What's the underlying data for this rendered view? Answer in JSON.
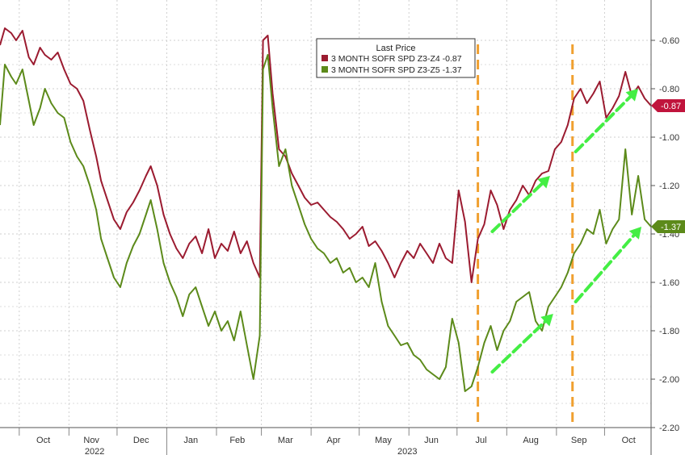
{
  "chart_data": {
    "type": "line",
    "title": "",
    "xlabel": "",
    "ylabel": "",
    "ylim": [
      -2.2,
      -0.5
    ],
    "y_ticks": [
      -0.6,
      -0.8,
      -1.0,
      -1.2,
      -1.4,
      -1.6,
      -1.8,
      -2.0,
      -2.2
    ],
    "y_tick_labels": [
      "-0.60",
      "-0.80",
      "-1.00",
      "-1.20",
      "-1.40",
      "-1.60",
      "-1.80",
      "-2.00",
      "-2.20"
    ],
    "x_range": [
      "2022-09-19",
      "2023-10-30"
    ],
    "month_labels": [
      {
        "label": "Oct",
        "date": "2022-10-16"
      },
      {
        "label": "Nov",
        "date": "2022-11-15"
      },
      {
        "label": "Dec",
        "date": "2022-12-16"
      },
      {
        "label": "Jan",
        "date": "2023-01-16"
      },
      {
        "label": "Feb",
        "date": "2023-02-14"
      },
      {
        "label": "Mar",
        "date": "2023-03-16"
      },
      {
        "label": "Apr",
        "date": "2023-04-15"
      },
      {
        "label": "May",
        "date": "2023-05-16"
      },
      {
        "label": "Jun",
        "date": "2023-06-15"
      },
      {
        "label": "Jul",
        "date": "2023-07-16"
      },
      {
        "label": "Aug",
        "date": "2023-08-16"
      },
      {
        "label": "Sep",
        "date": "2023-09-15"
      },
      {
        "label": "Oct",
        "date": "2023-10-16"
      }
    ],
    "year_labels": [
      {
        "label": "2022",
        "date": "2022-11-17"
      },
      {
        "label": "2023",
        "date": "2023-05-31"
      }
    ],
    "legend": {
      "title": "Last Price",
      "placement": "top-center",
      "entries": [
        {
          "label": "3 MONTH SOFR SPD Z3-Z4 -0.87",
          "color": "#9b1b30"
        },
        {
          "label": "3 MONTH SOFR SPD Z3-Z5 -1.37",
          "color": "#5c8a1a"
        }
      ]
    },
    "last_value_tags": [
      {
        "text": "-0.87",
        "value": -0.87,
        "color": "#c0143c"
      },
      {
        "text": "-1.37",
        "value": -1.37,
        "color": "#5c8a1a"
      }
    ],
    "vertical_markers": [
      {
        "date": "2023-07-14",
        "color": "#f0a030"
      },
      {
        "date": "2023-09-11",
        "color": "#f0a030"
      }
    ],
    "trend_arrows": [
      {
        "from": [
          "2023-07-23",
          -1.39
        ],
        "to": [
          "2023-08-28",
          -1.16
        ],
        "color": "#44ee44"
      },
      {
        "from": [
          "2023-09-13",
          -1.06
        ],
        "to": [
          "2023-10-22",
          -0.8
        ],
        "color": "#44ee44"
      },
      {
        "from": [
          "2023-07-23",
          -1.97
        ],
        "to": [
          "2023-08-30",
          -1.73
        ],
        "color": "#44ee44"
      },
      {
        "from": [
          "2023-09-13",
          -1.68
        ],
        "to": [
          "2023-10-24",
          -1.37
        ],
        "color": "#44ee44"
      }
    ],
    "series": [
      {
        "name": "3 MONTH SOFR SPD Z3-Z4",
        "color": "#9b1b30",
        "x": [
          "2022-09-19",
          "2022-09-22",
          "2022-09-26",
          "2022-09-29",
          "2022-10-03",
          "2022-10-07",
          "2022-10-10",
          "2022-10-14",
          "2022-10-17",
          "2022-10-21",
          "2022-10-25",
          "2022-10-29",
          "2022-11-02",
          "2022-11-06",
          "2022-11-10",
          "2022-11-14",
          "2022-11-18",
          "2022-11-21",
          "2022-11-25",
          "2022-11-29",
          "2022-12-03",
          "2022-12-07",
          "2022-12-11",
          "2022-12-15",
          "2022-12-19",
          "2022-12-22",
          "2022-12-26",
          "2022-12-30",
          "2023-01-03",
          "2023-01-07",
          "2023-01-11",
          "2023-01-15",
          "2023-01-19",
          "2023-01-23",
          "2023-01-27",
          "2023-01-31",
          "2023-02-04",
          "2023-02-08",
          "2023-02-12",
          "2023-02-16",
          "2023-02-20",
          "2023-02-24",
          "2023-02-28",
          "2023-03-02",
          "2023-03-05",
          "2023-03-08",
          "2023-03-12",
          "2023-03-16",
          "2023-03-20",
          "2023-03-24",
          "2023-03-28",
          "2023-04-01",
          "2023-04-05",
          "2023-04-09",
          "2023-04-13",
          "2023-04-17",
          "2023-04-21",
          "2023-04-25",
          "2023-04-29",
          "2023-05-03",
          "2023-05-07",
          "2023-05-11",
          "2023-05-15",
          "2023-05-19",
          "2023-05-23",
          "2023-05-27",
          "2023-05-31",
          "2023-06-04",
          "2023-06-08",
          "2023-06-12",
          "2023-06-16",
          "2023-06-20",
          "2023-06-24",
          "2023-06-28",
          "2023-07-02",
          "2023-07-06",
          "2023-07-10",
          "2023-07-14",
          "2023-07-18",
          "2023-07-22",
          "2023-07-26",
          "2023-07-30",
          "2023-08-03",
          "2023-08-07",
          "2023-08-11",
          "2023-08-15",
          "2023-08-19",
          "2023-08-23",
          "2023-08-27",
          "2023-08-31",
          "2023-09-04",
          "2023-09-08",
          "2023-09-12",
          "2023-09-16",
          "2023-09-20",
          "2023-09-24",
          "2023-09-28",
          "2023-10-02",
          "2023-10-06",
          "2023-10-10",
          "2023-10-14",
          "2023-10-18",
          "2023-10-22",
          "2023-10-26",
          "2023-10-30"
        ],
        "values": [
          -0.62,
          -0.55,
          -0.57,
          -0.6,
          -0.56,
          -0.67,
          -0.7,
          -0.63,
          -0.66,
          -0.68,
          -0.65,
          -0.72,
          -0.78,
          -0.8,
          -0.85,
          -0.97,
          -1.08,
          -1.18,
          -1.26,
          -1.34,
          -1.38,
          -1.31,
          -1.27,
          -1.22,
          -1.16,
          -1.12,
          -1.2,
          -1.32,
          -1.4,
          -1.46,
          -1.5,
          -1.44,
          -1.41,
          -1.48,
          -1.38,
          -1.5,
          -1.44,
          -1.47,
          -1.39,
          -1.48,
          -1.43,
          -1.52,
          -1.58,
          -0.6,
          -0.58,
          -0.82,
          -1.05,
          -1.08,
          -1.15,
          -1.2,
          -1.25,
          -1.28,
          -1.27,
          -1.3,
          -1.33,
          -1.35,
          -1.38,
          -1.42,
          -1.4,
          -1.37,
          -1.45,
          -1.43,
          -1.47,
          -1.52,
          -1.58,
          -1.52,
          -1.47,
          -1.5,
          -1.44,
          -1.48,
          -1.52,
          -1.44,
          -1.5,
          -1.52,
          -1.22,
          -1.35,
          -1.6,
          -1.42,
          -1.36,
          -1.22,
          -1.28,
          -1.38,
          -1.3,
          -1.26,
          -1.2,
          -1.24,
          -1.18,
          -1.15,
          -1.14,
          -1.05,
          -1.02,
          -0.95,
          -0.84,
          -0.8,
          -0.86,
          -0.82,
          -0.77,
          -0.92,
          -0.88,
          -0.83,
          -0.73,
          -0.83,
          -0.79,
          -0.84,
          -0.87
        ]
      },
      {
        "name": "3 MONTH SOFR SPD Z3-Z5",
        "color": "#5c8a1a",
        "x": [
          "2022-09-19",
          "2022-09-22",
          "2022-09-26",
          "2022-09-29",
          "2022-10-03",
          "2022-10-07",
          "2022-10-10",
          "2022-10-14",
          "2022-10-17",
          "2022-10-21",
          "2022-10-25",
          "2022-10-29",
          "2022-11-02",
          "2022-11-06",
          "2022-11-10",
          "2022-11-14",
          "2022-11-18",
          "2022-11-21",
          "2022-11-25",
          "2022-11-29",
          "2022-12-03",
          "2022-12-07",
          "2022-12-11",
          "2022-12-15",
          "2022-12-19",
          "2022-12-22",
          "2022-12-26",
          "2022-12-30",
          "2023-01-03",
          "2023-01-07",
          "2023-01-11",
          "2023-01-15",
          "2023-01-19",
          "2023-01-23",
          "2023-01-27",
          "2023-01-31",
          "2023-02-04",
          "2023-02-08",
          "2023-02-12",
          "2023-02-16",
          "2023-02-20",
          "2023-02-24",
          "2023-02-28",
          "2023-03-02",
          "2023-03-05",
          "2023-03-08",
          "2023-03-12",
          "2023-03-16",
          "2023-03-20",
          "2023-03-24",
          "2023-03-28",
          "2023-04-01",
          "2023-04-05",
          "2023-04-09",
          "2023-04-13",
          "2023-04-17",
          "2023-04-21",
          "2023-04-25",
          "2023-04-29",
          "2023-05-03",
          "2023-05-07",
          "2023-05-11",
          "2023-05-15",
          "2023-05-19",
          "2023-05-23",
          "2023-05-27",
          "2023-05-31",
          "2023-06-04",
          "2023-06-08",
          "2023-06-12",
          "2023-06-16",
          "2023-06-20",
          "2023-06-24",
          "2023-06-28",
          "2023-07-02",
          "2023-07-06",
          "2023-07-10",
          "2023-07-14",
          "2023-07-18",
          "2023-07-22",
          "2023-07-26",
          "2023-07-30",
          "2023-08-03",
          "2023-08-07",
          "2023-08-11",
          "2023-08-15",
          "2023-08-19",
          "2023-08-23",
          "2023-08-27",
          "2023-08-31",
          "2023-09-04",
          "2023-09-08",
          "2023-09-12",
          "2023-09-16",
          "2023-09-20",
          "2023-09-24",
          "2023-09-28",
          "2023-10-02",
          "2023-10-06",
          "2023-10-10",
          "2023-10-14",
          "2023-10-18",
          "2023-10-22",
          "2023-10-26",
          "2023-10-30"
        ],
        "values": [
          -0.95,
          -0.7,
          -0.75,
          -0.78,
          -0.72,
          -0.85,
          -0.95,
          -0.88,
          -0.8,
          -0.86,
          -0.9,
          -0.92,
          -1.02,
          -1.08,
          -1.12,
          -1.2,
          -1.3,
          -1.42,
          -1.5,
          -1.58,
          -1.62,
          -1.52,
          -1.45,
          -1.4,
          -1.32,
          -1.26,
          -1.38,
          -1.52,
          -1.6,
          -1.66,
          -1.74,
          -1.65,
          -1.62,
          -1.7,
          -1.78,
          -1.72,
          -1.8,
          -1.76,
          -1.84,
          -1.72,
          -1.86,
          -2.0,
          -1.82,
          -0.72,
          -0.66,
          -0.88,
          -1.12,
          -1.05,
          -1.2,
          -1.28,
          -1.36,
          -1.42,
          -1.46,
          -1.48,
          -1.52,
          -1.5,
          -1.56,
          -1.54,
          -1.6,
          -1.58,
          -1.62,
          -1.52,
          -1.68,
          -1.78,
          -1.82,
          -1.86,
          -1.85,
          -1.9,
          -1.92,
          -1.96,
          -1.98,
          -2.0,
          -1.95,
          -1.75,
          -1.85,
          -2.05,
          -2.03,
          -1.95,
          -1.85,
          -1.78,
          -1.88,
          -1.8,
          -1.76,
          -1.68,
          -1.66,
          -1.64,
          -1.76,
          -1.8,
          -1.7,
          -1.66,
          -1.62,
          -1.56,
          -1.48,
          -1.44,
          -1.38,
          -1.4,
          -1.3,
          -1.44,
          -1.38,
          -1.34,
          -1.05,
          -1.32,
          -1.16,
          -1.34,
          -1.37
        ]
      }
    ]
  }
}
